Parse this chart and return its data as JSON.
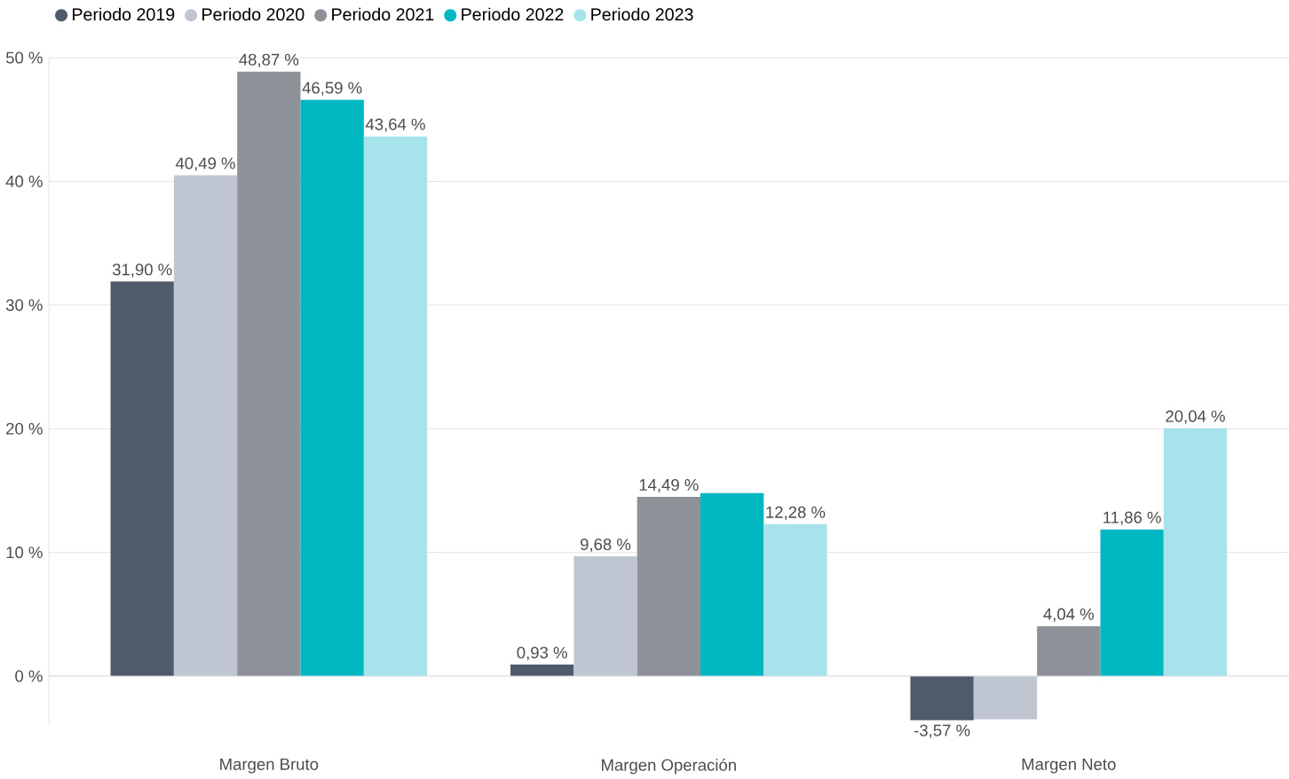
{
  "chart_data": {
    "type": "bar",
    "categories": [
      "Margen Bruto",
      "Margen Operación",
      "Margen Neto"
    ],
    "series": [
      {
        "name": "Periodo 2019",
        "color": "#4f5b6b",
        "values": [
          31.9,
          0.93,
          -3.57
        ],
        "value_labels": [
          "31,90 %",
          "0,93 %",
          "-3,57 %"
        ]
      },
      {
        "name": "Periodo 2020",
        "color": "#bfc6d2",
        "values": [
          40.49,
          9.68,
          -3.5
        ],
        "value_labels": [
          "40,49 %",
          "9,68 %",
          null
        ]
      },
      {
        "name": "Periodo 2021",
        "color": "#8e9298",
        "values": [
          48.87,
          14.49,
          4.04
        ],
        "value_labels": [
          "48,87 %",
          "14,49 %",
          "4,04 %"
        ]
      },
      {
        "name": "Periodo 2022",
        "color": "#01b8c2",
        "values": [
          46.59,
          14.8,
          11.86
        ],
        "value_labels": [
          "46,59 %",
          null,
          "11,86 %"
        ]
      },
      {
        "name": "Periodo 2023",
        "color": "#a7e3ea",
        "values": [
          43.64,
          12.28,
          20.04
        ],
        "value_labels": [
          "43,64 %",
          "12,28 %",
          "20,04 %"
        ]
      }
    ],
    "yticks": [
      {
        "value": 0,
        "label": "0 %"
      },
      {
        "value": 10,
        "label": "10 %"
      },
      {
        "value": 20,
        "label": "20 %"
      },
      {
        "value": 30,
        "label": "30 %"
      },
      {
        "value": 40,
        "label": "40 %"
      },
      {
        "value": 50,
        "label": "50 %"
      }
    ],
    "ylim": [
      -4,
      50
    ],
    "grid": "y",
    "legend": "top left"
  }
}
